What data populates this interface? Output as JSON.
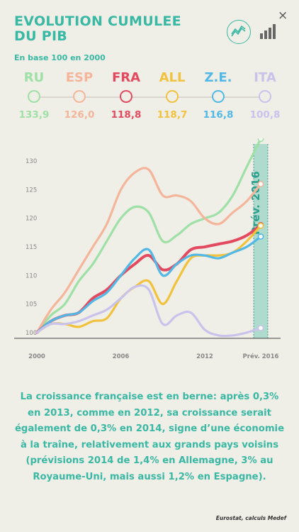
{
  "header": {
    "title": "EVOLUTION CUMULEE DU PIB",
    "subtitle": "En base 100 en 2000",
    "close": "×"
  },
  "legend": [
    {
      "name": "RU",
      "value": "133,9",
      "color": "#9ee0a5"
    },
    {
      "name": "ESP",
      "value": "126,0",
      "color": "#f4b59a"
    },
    {
      "name": "FRA",
      "value": "118,8",
      "color": "#e34a5f"
    },
    {
      "name": "ALL",
      "value": "118,7",
      "color": "#f1c23d"
    },
    {
      "name": "Z.E.",
      "value": "116,8",
      "color": "#52b8e6"
    },
    {
      "name": "ITA",
      "value": "100,8",
      "color": "#c9c3ec"
    }
  ],
  "chart_data": {
    "type": "line",
    "xlabel": "",
    "ylabel": "",
    "x_ticks": [
      "2000",
      "2006",
      "2012",
      "Prév. 2016"
    ],
    "y_ticks": [
      100,
      105,
      110,
      115,
      120,
      125,
      130
    ],
    "ylim": [
      98,
      133
    ],
    "xlim": [
      2000,
      2016
    ],
    "forecast_label": "Prév. 2016",
    "series": [
      {
        "name": "RU",
        "color": "#9ee0a5",
        "x": [
          2000,
          2001,
          2002,
          2003,
          2004,
          2005,
          2006,
          2007,
          2008,
          2009,
          2010,
          2011,
          2012,
          2013,
          2014,
          2015,
          2016
        ],
        "values": [
          100,
          103,
          105,
          109,
          112,
          116,
          120,
          122,
          121,
          116,
          117,
          119,
          120,
          121,
          124,
          129,
          133.9
        ]
      },
      {
        "name": "ESP",
        "color": "#f4b59a",
        "x": [
          2000,
          2001,
          2002,
          2003,
          2004,
          2005,
          2006,
          2007,
          2008,
          2009,
          2010,
          2011,
          2012,
          2013,
          2014,
          2015,
          2016
        ],
        "values": [
          100,
          104,
          107,
          111,
          115,
          119,
          125,
          128,
          128.5,
          124,
          124,
          123,
          120,
          119,
          121,
          123,
          126.0
        ]
      },
      {
        "name": "FRA",
        "color": "#e34a5f",
        "x": [
          2000,
          2001,
          2002,
          2003,
          2004,
          2005,
          2006,
          2007,
          2008,
          2009,
          2010,
          2011,
          2012,
          2013,
          2014,
          2015,
          2016
        ],
        "values": [
          100,
          102,
          103,
          103.5,
          106,
          107.5,
          110,
          112,
          113.5,
          111,
          112,
          114.5,
          115,
          115.5,
          116,
          117,
          118.8
        ]
      },
      {
        "name": "ALL",
        "color": "#f1c23d",
        "x": [
          2000,
          2001,
          2002,
          2003,
          2004,
          2005,
          2006,
          2007,
          2008,
          2009,
          2010,
          2011,
          2012,
          2013,
          2014,
          2015,
          2016
        ],
        "values": [
          100,
          101.5,
          101.5,
          101,
          102,
          102.5,
          106,
          108,
          109,
          105,
          109,
          113,
          113.5,
          113.5,
          114,
          116,
          118.7
        ]
      },
      {
        "name": "Z.E.",
        "color": "#52b8e6",
        "x": [
          2000,
          2001,
          2002,
          2003,
          2004,
          2005,
          2006,
          2007,
          2008,
          2009,
          2010,
          2011,
          2012,
          2013,
          2014,
          2015,
          2016
        ],
        "values": [
          100,
          102,
          103,
          103.5,
          105.5,
          107,
          110,
          113,
          114.5,
          110,
          112,
          113.5,
          113.5,
          113,
          114,
          115,
          116.8
        ]
      },
      {
        "name": "ITA",
        "color": "#c9c3ec",
        "x": [
          2000,
          2001,
          2002,
          2003,
          2004,
          2005,
          2006,
          2007,
          2008,
          2009,
          2010,
          2011,
          2012,
          2013,
          2014,
          2015,
          2016
        ],
        "values": [
          100,
          101.5,
          101.5,
          102,
          103,
          104,
          106,
          108,
          107.5,
          101.5,
          103,
          103.5,
          100.5,
          99.5,
          99.5,
          100,
          100.8
        ]
      }
    ]
  },
  "body": {
    "text": "La croissance française est en berne: après 0,3% en 2013, comme en 2012, sa croissance serait également de 0,3% en 2014, signe d’une économie à la traîne, relativement aux grands pays voisins (prévisions 2014 de 1,4% en Allemagne, 3% au Royaume-Uni, mais aussi 1,2% en Espagne).",
    "source": "Eurostat, calculs Medef"
  }
}
